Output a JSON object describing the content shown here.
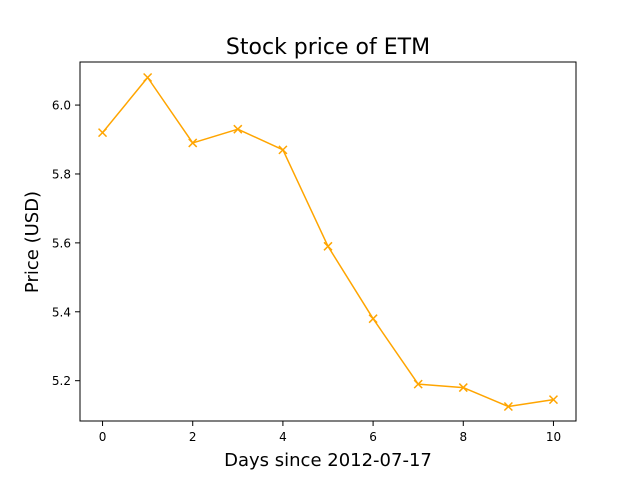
{
  "chart_data": {
    "type": "line",
    "title": "Stock price of ETM",
    "xlabel": "Days since 2012-07-17",
    "ylabel": "Price (USD)",
    "xlim": [
      -0.5,
      10.5
    ],
    "ylim": [
      5.083,
      6.125
    ],
    "x_ticks": [
      0,
      2,
      4,
      6,
      8,
      10
    ],
    "y_ticks": [
      5.2,
      5.4,
      5.6,
      5.8,
      6.0
    ],
    "y_tick_labels": [
      "5.2",
      "5.4",
      "5.6",
      "5.8",
      "6.0"
    ],
    "grid": false,
    "series": [
      {
        "color": "#ffa500",
        "marker": "x",
        "x": [
          0,
          1,
          2,
          3,
          4,
          5,
          6,
          7,
          8,
          9,
          10
        ],
        "y": [
          5.92,
          6.08,
          5.89,
          5.93,
          5.87,
          5.59,
          5.38,
          5.19,
          5.18,
          5.125,
          5.145
        ]
      }
    ]
  }
}
